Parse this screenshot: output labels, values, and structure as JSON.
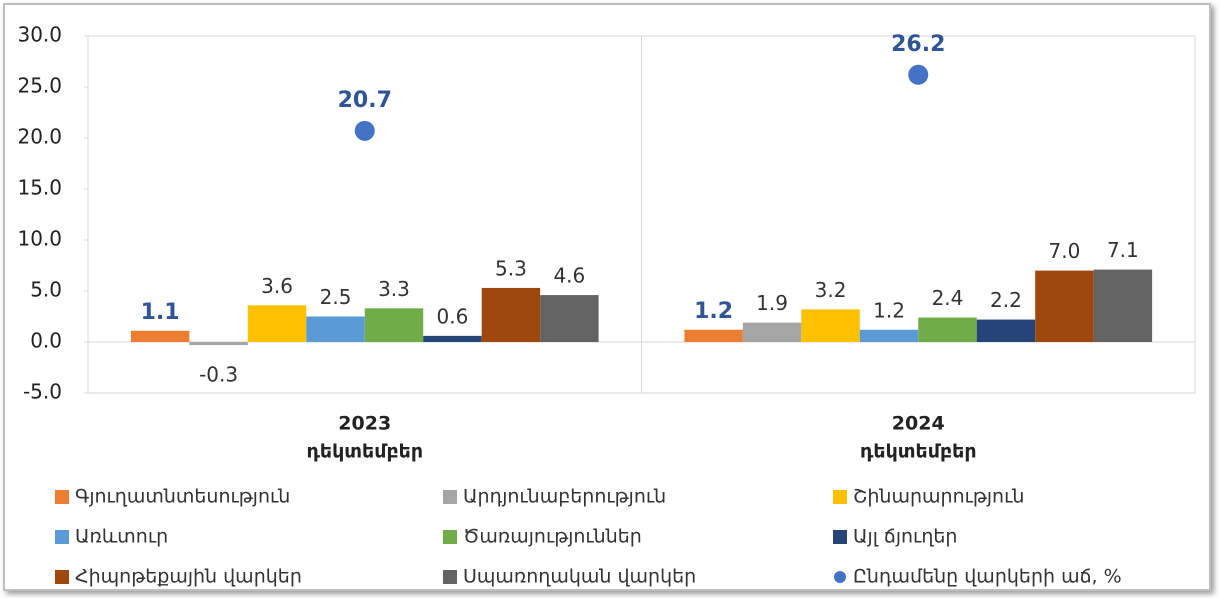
{
  "chart_data": {
    "type": "bar",
    "categories": [
      [
        "2023",
        "դեկտեմբեր"
      ],
      [
        "2024",
        "դեկտեմբեր"
      ]
    ],
    "series": [
      {
        "name": "Գյուղատնտեսություն",
        "color": "#ed7d31",
        "values": [
          1.1,
          1.2
        ],
        "value_labels": [
          "1.1",
          "1.2"
        ]
      },
      {
        "name": "Արդյունաբերություն",
        "color": "#a5a5a5",
        "values": [
          -0.3,
          1.9
        ],
        "value_labels": [
          "-0.3",
          "1.9"
        ]
      },
      {
        "name": "Շինարարություն",
        "color": "#ffc000",
        "values": [
          3.6,
          3.2
        ],
        "value_labels": [
          "3.6",
          "3.2"
        ]
      },
      {
        "name": "Առևտուր",
        "color": "#5b9bd5",
        "values": [
          2.5,
          1.2
        ],
        "value_labels": [
          "2.5",
          "1.2"
        ]
      },
      {
        "name": "Ծառայություններ",
        "color": "#70ad47",
        "values": [
          3.3,
          2.4
        ],
        "value_labels": [
          "3.3",
          "2.4"
        ]
      },
      {
        "name": "Այլ ճյուղեր",
        "color": "#264478",
        "values": [
          0.6,
          2.2
        ],
        "value_labels": [
          "0.6",
          "2.2"
        ]
      },
      {
        "name": "Հիպոթեքային վարկեր",
        "color": "#9e480e",
        "values": [
          5.3,
          7.0
        ],
        "value_labels": [
          "5.3",
          "7.0"
        ]
      },
      {
        "name": "Սպառողական վարկեր",
        "color": "#636363",
        "values": [
          4.6,
          7.1
        ],
        "value_labels": [
          "4.6",
          "7.1"
        ]
      },
      {
        "name": "Ընդամենը վարկերի աճ, %",
        "color": "#4472c4",
        "type": "scatter",
        "values": [
          20.7,
          26.2
        ],
        "value_labels": [
          "20.7",
          "26.2"
        ]
      }
    ],
    "ylim": [
      -5,
      30
    ],
    "yticks": [
      {
        "value": -5,
        "label": "-5.0"
      },
      {
        "value": 0,
        "label": "0.0"
      },
      {
        "value": 5,
        "label": "5.0"
      },
      {
        "value": 10,
        "label": "10.0"
      },
      {
        "value": 15,
        "label": "15.0"
      },
      {
        "value": 20,
        "label": "20.0"
      },
      {
        "value": 25,
        "label": "25.0"
      },
      {
        "value": 30,
        "label": "30.0"
      }
    ],
    "grid": false,
    "legend": "bottom"
  }
}
